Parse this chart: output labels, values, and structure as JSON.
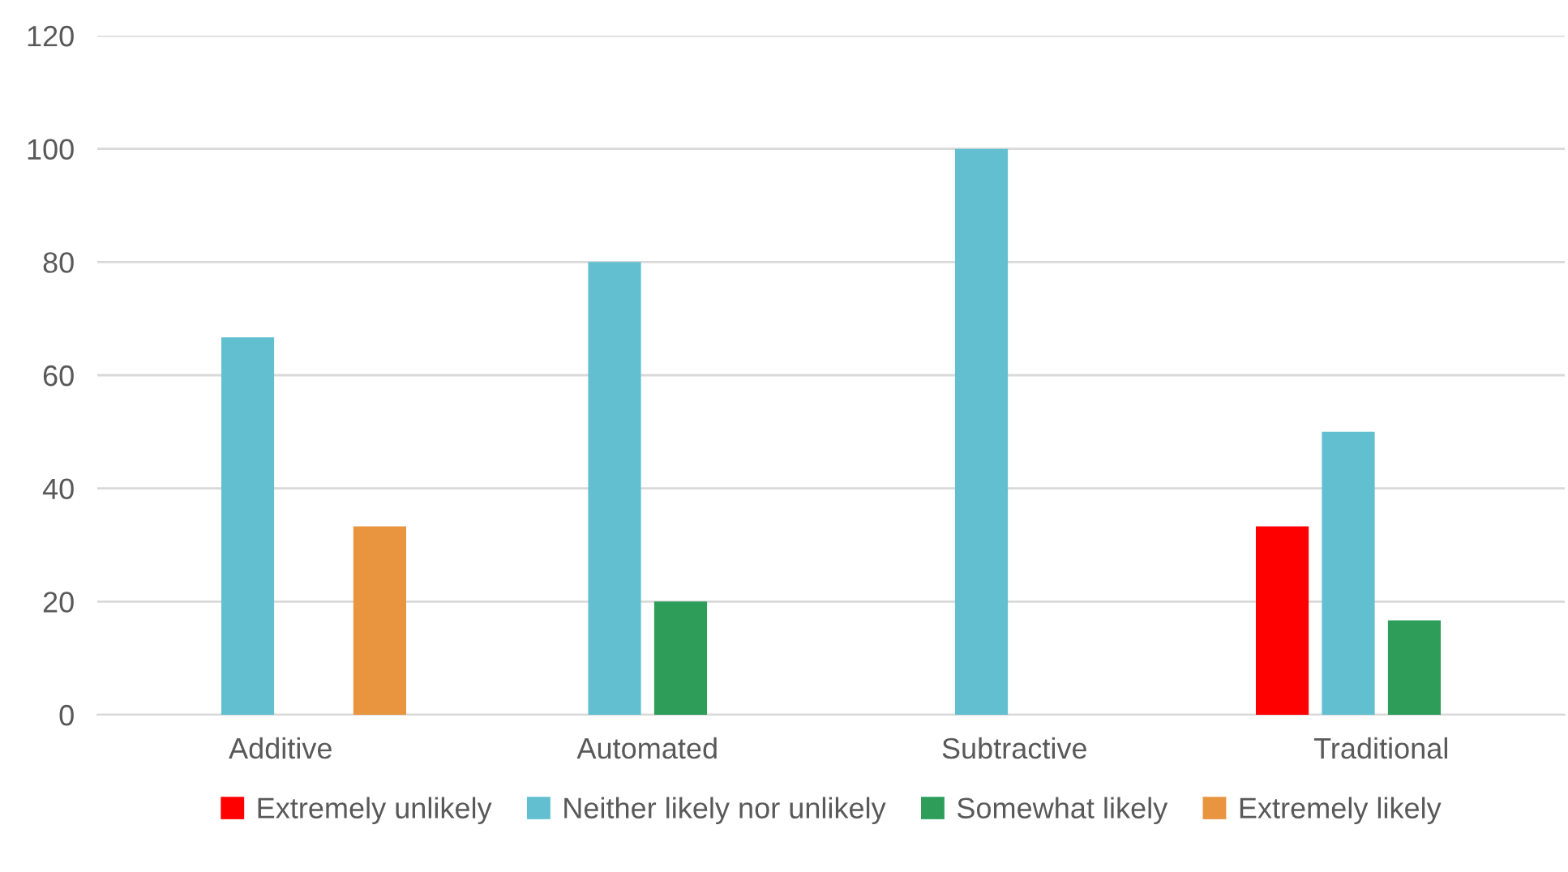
{
  "chart_data": {
    "type": "bar",
    "categories": [
      "Additive",
      "Automated",
      "Subtractive",
      "Traditional"
    ],
    "series": [
      {
        "name": "Extremely unlikely",
        "color": "#ff0000",
        "values": [
          null,
          null,
          null,
          33.3
        ]
      },
      {
        "name": "Neither likely nor unlikely",
        "color": "#62bfd0",
        "values": [
          66.7,
          80,
          100,
          50
        ]
      },
      {
        "name": "Somewhat likely",
        "color": "#2e9d5a",
        "values": [
          null,
          20,
          null,
          16.7
        ]
      },
      {
        "name": "Extremely likely",
        "color": "#e9943f",
        "values": [
          33.3,
          null,
          null,
          null
        ]
      }
    ],
    "ylim": [
      0,
      120
    ],
    "yticks": [
      0,
      20,
      40,
      60,
      80,
      100,
      120
    ],
    "grid": "y",
    "legend": "bottom"
  }
}
